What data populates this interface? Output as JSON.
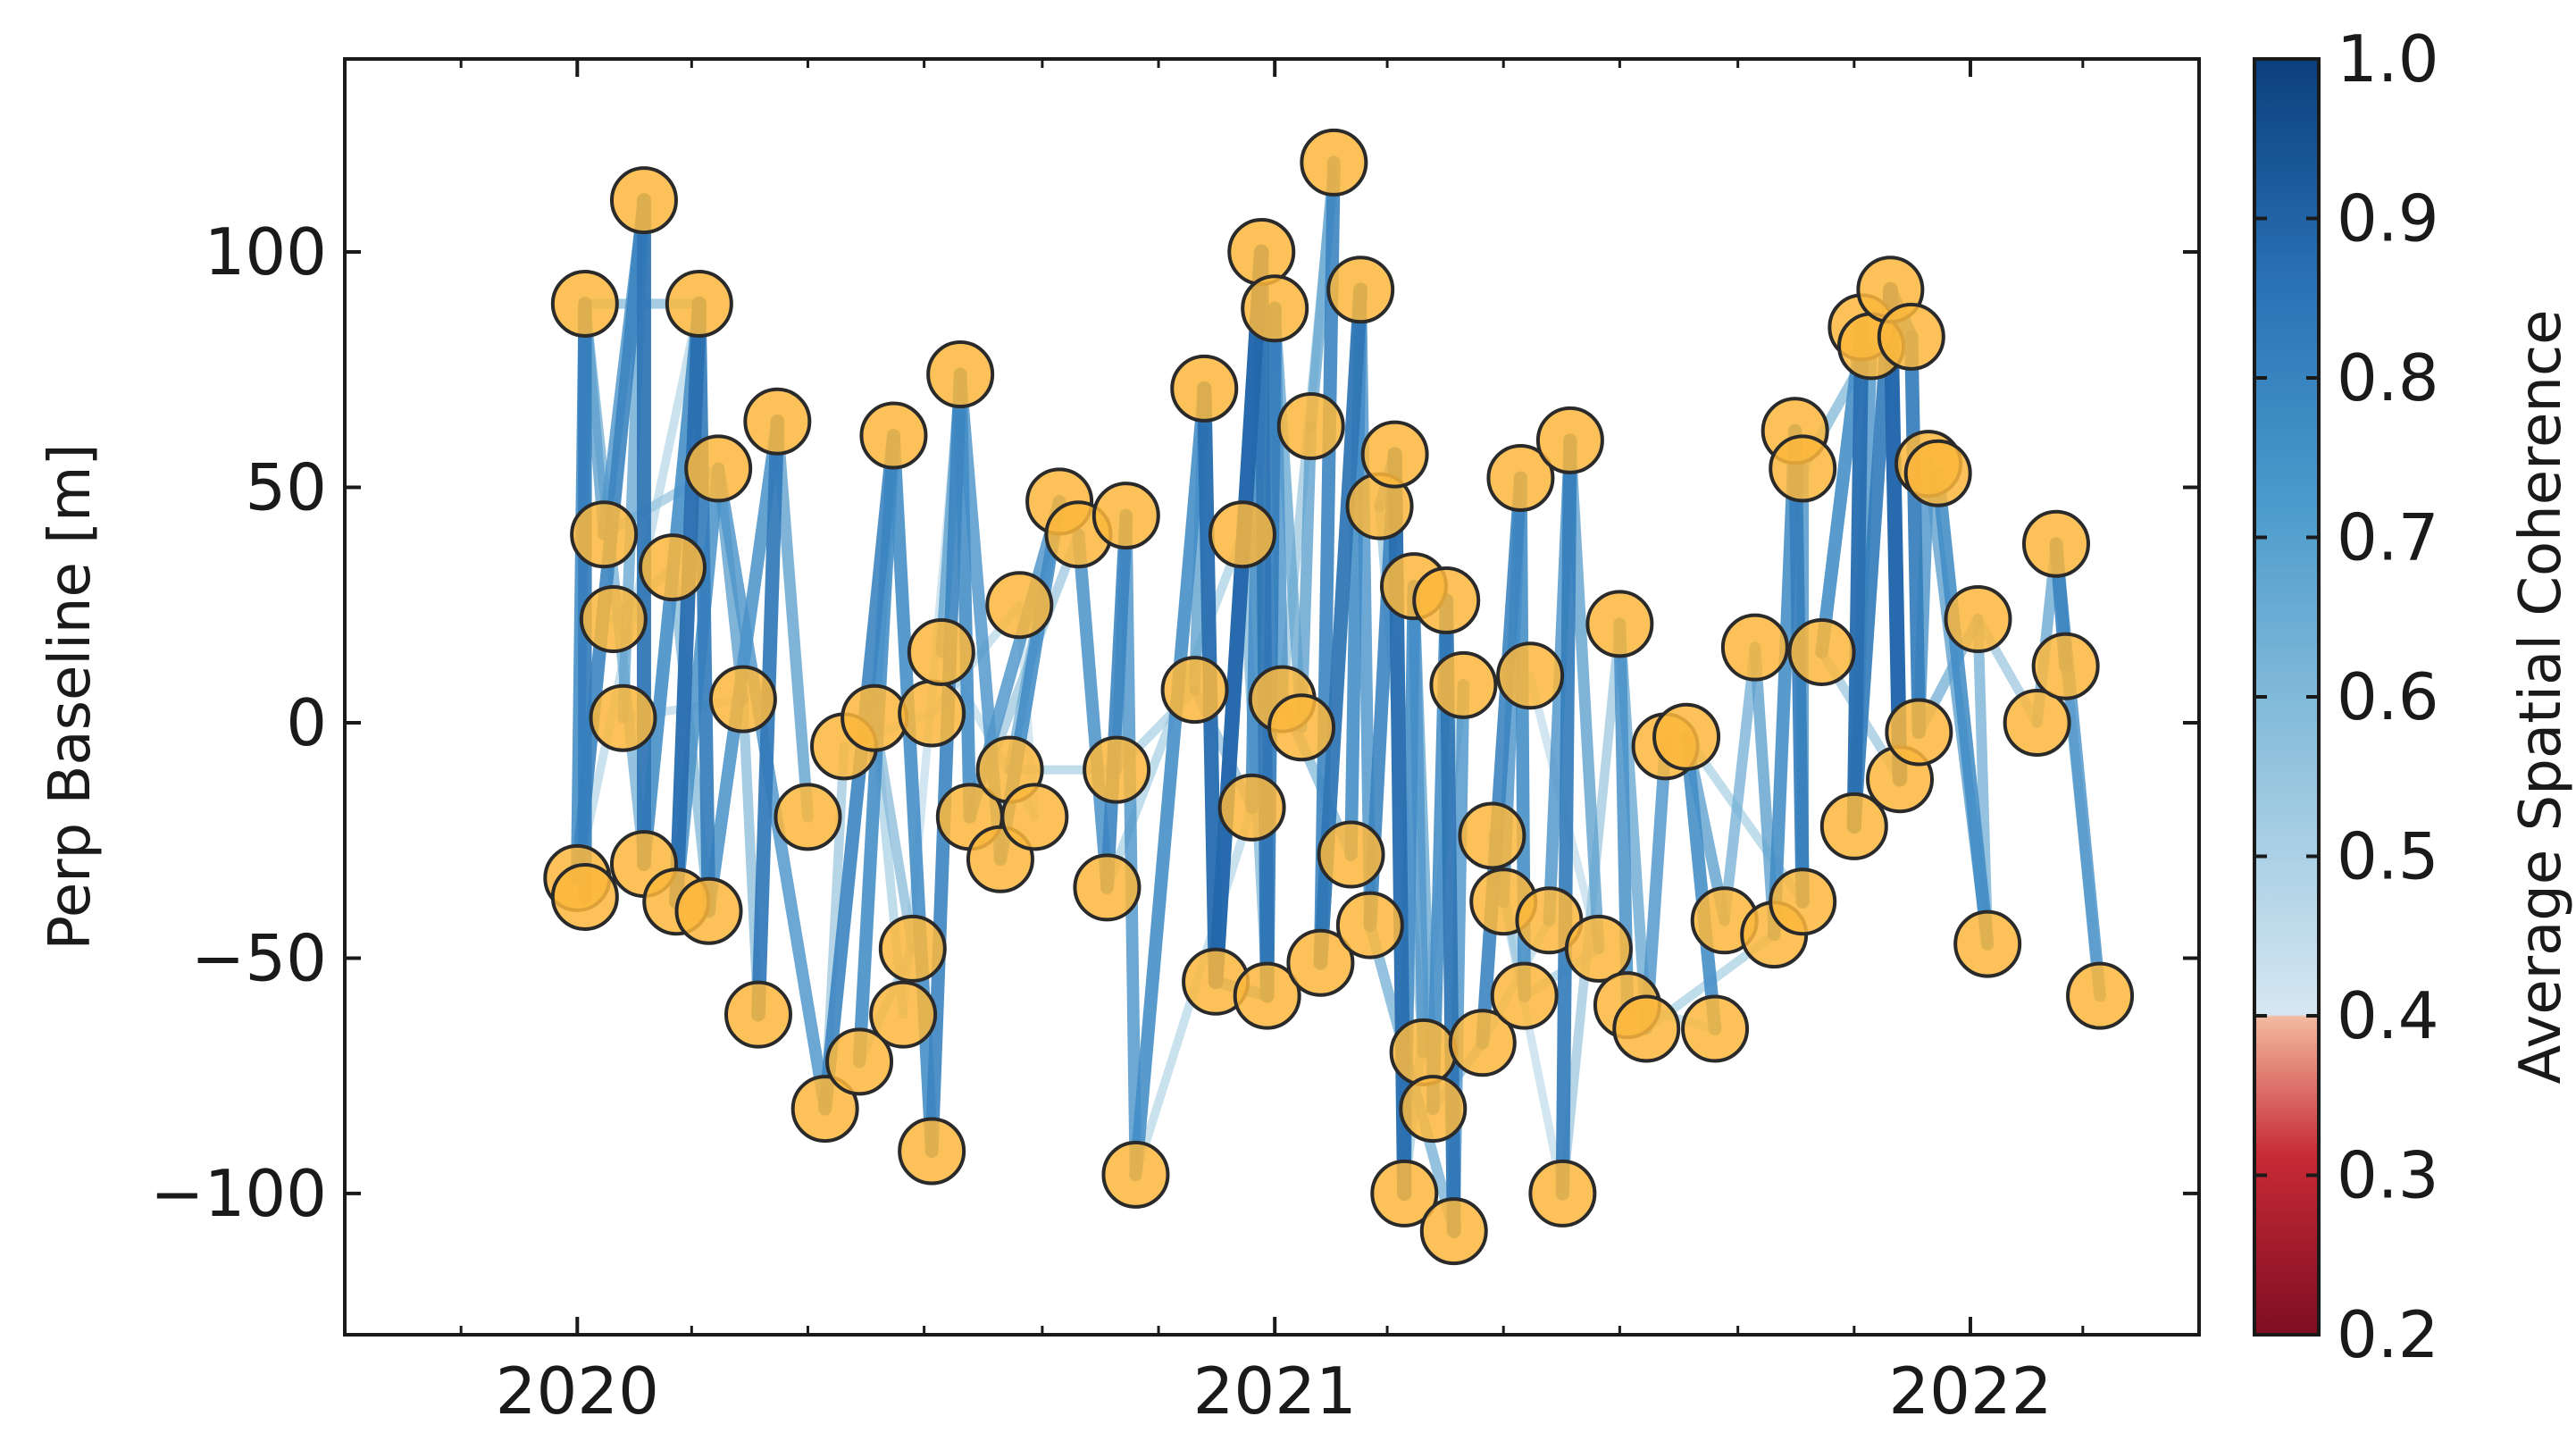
{
  "chart_data": {
    "type": "scatter",
    "title": "",
    "xlabel": "",
    "ylabel": "Perp Baseline [m]",
    "colorbar_label": "Average Spatial Coherence",
    "x_ticks": [
      "2020",
      "2021",
      "2022"
    ],
    "y_ticks": [
      100,
      50,
      0,
      -50,
      -100
    ],
    "y_tick_labels": [
      "100",
      "50",
      "0",
      "−50",
      "−100"
    ],
    "xlim": [
      "2019-09-01",
      "2022-05-01"
    ],
    "ylim": [
      -130,
      141
    ],
    "colorbar_ticks": [
      "1.0",
      "0.9",
      "0.8",
      "0.7",
      "0.6",
      "0.5",
      "0.4",
      "0.3",
      "0.2"
    ],
    "colorbar_range": [
      0.2,
      1.0
    ],
    "colorbar_threshold": 0.4,
    "colors": {
      "marker_fill": "#fbb73c",
      "marker_edge": "#2a2a2a",
      "colormap_low": [
        "#7e0d22",
        "#c72a35",
        "#e98a74",
        "#f2b9a0"
      ],
      "colormap_high": [
        "#cfe3f0",
        "#92c3de",
        "#4c9bcc",
        "#2a73b6",
        "#0b3f7e"
      ]
    },
    "grid": false,
    "legend": "none",
    "points": [
      {
        "date": "2020-01-01",
        "baseline": -33
      },
      {
        "date": "2020-01-05",
        "baseline": -37
      },
      {
        "date": "2020-01-05",
        "baseline": 89
      },
      {
        "date": "2020-01-15",
        "baseline": 40
      },
      {
        "date": "2020-01-20",
        "baseline": 22
      },
      {
        "date": "2020-01-25",
        "baseline": 1
      },
      {
        "date": "2020-02-05",
        "baseline": 111
      },
      {
        "date": "2020-02-05",
        "baseline": -30
      },
      {
        "date": "2020-02-20",
        "baseline": 33
      },
      {
        "date": "2020-02-22",
        "baseline": -38
      },
      {
        "date": "2020-03-05",
        "baseline": 89
      },
      {
        "date": "2020-03-10",
        "baseline": -40
      },
      {
        "date": "2020-03-15",
        "baseline": 54
      },
      {
        "date": "2020-03-28",
        "baseline": 5
      },
      {
        "date": "2020-04-05",
        "baseline": -62
      },
      {
        "date": "2020-04-15",
        "baseline": 64
      },
      {
        "date": "2020-05-01",
        "baseline": -20
      },
      {
        "date": "2020-05-10",
        "baseline": -82
      },
      {
        "date": "2020-05-20",
        "baseline": -5
      },
      {
        "date": "2020-05-28",
        "baseline": -72
      },
      {
        "date": "2020-06-05",
        "baseline": 1
      },
      {
        "date": "2020-06-15",
        "baseline": 61
      },
      {
        "date": "2020-06-20",
        "baseline": -62
      },
      {
        "date": "2020-06-25",
        "baseline": -48
      },
      {
        "date": "2020-07-05",
        "baseline": -91
      },
      {
        "date": "2020-07-05",
        "baseline": 2
      },
      {
        "date": "2020-07-10",
        "baseline": 15
      },
      {
        "date": "2020-07-20",
        "baseline": 74
      },
      {
        "date": "2020-07-25",
        "baseline": -20
      },
      {
        "date": "2020-08-10",
        "baseline": -29
      },
      {
        "date": "2020-08-15",
        "baseline": -10
      },
      {
        "date": "2020-08-20",
        "baseline": 25
      },
      {
        "date": "2020-08-28",
        "baseline": -20
      },
      {
        "date": "2020-09-10",
        "baseline": 47
      },
      {
        "date": "2020-09-20",
        "baseline": 40
      },
      {
        "date": "2020-10-05",
        "baseline": -35
      },
      {
        "date": "2020-10-10",
        "baseline": -10
      },
      {
        "date": "2020-10-15",
        "baseline": 44
      },
      {
        "date": "2020-10-20",
        "baseline": -96
      },
      {
        "date": "2020-11-20",
        "baseline": 7
      },
      {
        "date": "2020-11-25",
        "baseline": 71
      },
      {
        "date": "2020-12-01",
        "baseline": -55
      },
      {
        "date": "2020-12-15",
        "baseline": 40
      },
      {
        "date": "2020-12-20",
        "baseline": -18
      },
      {
        "date": "2020-12-25",
        "baseline": 100
      },
      {
        "date": "2020-12-28",
        "baseline": -58
      },
      {
        "date": "2021-01-01",
        "baseline": 88
      },
      {
        "date": "2021-01-05",
        "baseline": 5
      },
      {
        "date": "2021-01-15",
        "baseline": -1
      },
      {
        "date": "2021-01-20",
        "baseline": 63
      },
      {
        "date": "2021-01-25",
        "baseline": -51
      },
      {
        "date": "2021-02-01",
        "baseline": 119
      },
      {
        "date": "2021-02-10",
        "baseline": -28
      },
      {
        "date": "2021-02-15",
        "baseline": 92
      },
      {
        "date": "2021-02-20",
        "baseline": -43
      },
      {
        "date": "2021-02-25",
        "baseline": 46
      },
      {
        "date": "2021-03-05",
        "baseline": 57
      },
      {
        "date": "2021-03-10",
        "baseline": -100
      },
      {
        "date": "2021-03-15",
        "baseline": 29
      },
      {
        "date": "2021-03-20",
        "baseline": -70
      },
      {
        "date": "2021-03-25",
        "baseline": -82
      },
      {
        "date": "2021-04-01",
        "baseline": 26
      },
      {
        "date": "2021-04-05",
        "baseline": -108
      },
      {
        "date": "2021-04-10",
        "baseline": 8
      },
      {
        "date": "2021-04-20",
        "baseline": -68
      },
      {
        "date": "2021-04-25",
        "baseline": -24
      },
      {
        "date": "2021-05-01",
        "baseline": -38
      },
      {
        "date": "2021-05-10",
        "baseline": 52
      },
      {
        "date": "2021-05-12",
        "baseline": -58
      },
      {
        "date": "2021-05-15",
        "baseline": 10
      },
      {
        "date": "2021-05-25",
        "baseline": -42
      },
      {
        "date": "2021-06-01",
        "baseline": -100
      },
      {
        "date": "2021-06-05",
        "baseline": 60
      },
      {
        "date": "2021-06-20",
        "baseline": -48
      },
      {
        "date": "2021-07-01",
        "baseline": 21
      },
      {
        "date": "2021-07-05",
        "baseline": -60
      },
      {
        "date": "2021-07-15",
        "baseline": -65
      },
      {
        "date": "2021-07-25",
        "baseline": -5
      },
      {
        "date": "2021-08-05",
        "baseline": -3
      },
      {
        "date": "2021-08-20",
        "baseline": -65
      },
      {
        "date": "2021-08-25",
        "baseline": -42
      },
      {
        "date": "2021-09-10",
        "baseline": 16
      },
      {
        "date": "2021-09-20",
        "baseline": -45
      },
      {
        "date": "2021-10-01",
        "baseline": 62
      },
      {
        "date": "2021-10-05",
        "baseline": 54
      },
      {
        "date": "2021-10-05",
        "baseline": -38
      },
      {
        "date": "2021-10-15",
        "baseline": 15
      },
      {
        "date": "2021-11-01",
        "baseline": -22
      },
      {
        "date": "2021-11-05",
        "baseline": 84
      },
      {
        "date": "2021-11-10",
        "baseline": 80
      },
      {
        "date": "2021-11-20",
        "baseline": 92
      },
      {
        "date": "2021-11-25",
        "baseline": -12
      },
      {
        "date": "2021-12-01",
        "baseline": 82
      },
      {
        "date": "2021-12-05",
        "baseline": -2
      },
      {
        "date": "2021-12-10",
        "baseline": 55
      },
      {
        "date": "2021-12-15",
        "baseline": 53
      },
      {
        "date": "2022-01-05",
        "baseline": 22
      },
      {
        "date": "2022-01-10",
        "baseline": -47
      },
      {
        "date": "2022-02-05",
        "baseline": 0
      },
      {
        "date": "2022-02-15",
        "baseline": 38
      },
      {
        "date": "2022-02-20",
        "baseline": 12
      },
      {
        "date": "2022-03-10",
        "baseline": -58
      }
    ],
    "pairs": [
      [
        2,
        1,
        0.74
      ],
      [
        2,
        0,
        0.7
      ],
      [
        2,
        3,
        0.62
      ],
      [
        2,
        10,
        0.55
      ],
      [
        6,
        0,
        0.72
      ],
      [
        6,
        7,
        0.76
      ],
      [
        6,
        3,
        0.66
      ],
      [
        6,
        5,
        0.6
      ],
      [
        10,
        9,
        0.78
      ],
      [
        10,
        11,
        0.74
      ],
      [
        10,
        7,
        0.7
      ],
      [
        12,
        9,
        0.68
      ],
      [
        12,
        13,
        0.62
      ],
      [
        15,
        14,
        0.75
      ],
      [
        15,
        11,
        0.68
      ],
      [
        15,
        16,
        0.62
      ],
      [
        14,
        13,
        0.55
      ],
      [
        17,
        12,
        0.66
      ],
      [
        17,
        18,
        0.52
      ],
      [
        21,
        17,
        0.72
      ],
      [
        21,
        19,
        0.7
      ],
      [
        21,
        20,
        0.58
      ],
      [
        21,
        24,
        0.7
      ],
      [
        22,
        20,
        0.5
      ],
      [
        23,
        20,
        0.55
      ],
      [
        27,
        24,
        0.72
      ],
      [
        27,
        26,
        0.62
      ],
      [
        27,
        28,
        0.7
      ],
      [
        27,
        29,
        0.66
      ],
      [
        27,
        22,
        0.46
      ],
      [
        33,
        29,
        0.7
      ],
      [
        33,
        28,
        0.66
      ],
      [
        33,
        30,
        0.58
      ],
      [
        34,
        35,
        0.68
      ],
      [
        37,
        35,
        0.72
      ],
      [
        37,
        36,
        0.6
      ],
      [
        37,
        38,
        0.66
      ],
      [
        40,
        38,
        0.7
      ],
      [
        40,
        41,
        0.78
      ],
      [
        40,
        39,
        0.62
      ],
      [
        44,
        41,
        0.8
      ],
      [
        44,
        43,
        0.7
      ],
      [
        44,
        45,
        0.76
      ],
      [
        46,
        45,
        0.74
      ],
      [
        46,
        47,
        0.66
      ],
      [
        46,
        48,
        0.6
      ],
      [
        49,
        48,
        0.62
      ],
      [
        51,
        50,
        0.72
      ],
      [
        51,
        49,
        0.6
      ],
      [
        51,
        47,
        0.52
      ],
      [
        53,
        50,
        0.76
      ],
      [
        53,
        52,
        0.7
      ],
      [
        53,
        54,
        0.66
      ],
      [
        56,
        54,
        0.72
      ],
      [
        56,
        57,
        0.78
      ],
      [
        56,
        55,
        0.62
      ],
      [
        58,
        57,
        0.7
      ],
      [
        58,
        59,
        0.66
      ],
      [
        58,
        60,
        0.6
      ],
      [
        61,
        62,
        0.76
      ],
      [
        61,
        60,
        0.7
      ],
      [
        63,
        62,
        0.66
      ],
      [
        67,
        64,
        0.72
      ],
      [
        67,
        66,
        0.66
      ],
      [
        67,
        68,
        0.7
      ],
      [
        72,
        71,
        0.74
      ],
      [
        72,
        70,
        0.66
      ],
      [
        72,
        73,
        0.62
      ],
      [
        74,
        75,
        0.68
      ],
      [
        74,
        76,
        0.6
      ],
      [
        74,
        71,
        0.52
      ],
      [
        77,
        76,
        0.66
      ],
      [
        78,
        79,
        0.7
      ],
      [
        78,
        80,
        0.62
      ],
      [
        81,
        80,
        0.58
      ],
      [
        81,
        82,
        0.62
      ],
      [
        83,
        85,
        0.74
      ],
      [
        83,
        82,
        0.7
      ],
      [
        84,
        85,
        0.66
      ],
      [
        88,
        87,
        0.78
      ],
      [
        88,
        86,
        0.7
      ],
      [
        89,
        87,
        0.66
      ],
      [
        90,
        91,
        0.8
      ],
      [
        90,
        87,
        0.74
      ],
      [
        90,
        92,
        0.7
      ],
      [
        92,
        93,
        0.74
      ],
      [
        94,
        93,
        0.66
      ],
      [
        95,
        97,
        0.7
      ],
      [
        94,
        97,
        0.62
      ],
      [
        99,
        98,
        0.6
      ],
      [
        99,
        100,
        0.72
      ],
      [
        99,
        101,
        0.66
      ],
      [
        96,
        97,
        0.58
      ],
      [
        96,
        98,
        0.52
      ],
      [
        100,
        101,
        0.56
      ],
      [
        2,
        7,
        0.58
      ],
      [
        10,
        0,
        0.48
      ],
      [
        3,
        12,
        0.52
      ],
      [
        8,
        11,
        0.56
      ],
      [
        19,
        23,
        0.5
      ],
      [
        25,
        31,
        0.48
      ],
      [
        30,
        36,
        0.5
      ],
      [
        31,
        32,
        0.45
      ],
      [
        35,
        42,
        0.5
      ],
      [
        42,
        45,
        0.56
      ],
      [
        39,
        43,
        0.54
      ],
      [
        47,
        52,
        0.56
      ],
      [
        55,
        59,
        0.52
      ],
      [
        57,
        63,
        0.5
      ],
      [
        65,
        68,
        0.52
      ],
      [
        68,
        73,
        0.5
      ],
      [
        69,
        73,
        0.46
      ],
      [
        75,
        79,
        0.48
      ],
      [
        76,
        82,
        0.5
      ],
      [
        84,
        89,
        0.56
      ],
      [
        86,
        91,
        0.52
      ],
      [
        93,
        96,
        0.58
      ],
      [
        5,
        13,
        0.47
      ],
      [
        26,
        32,
        0.46
      ],
      [
        64,
        70,
        0.48
      ],
      [
        78,
        85,
        0.5
      ],
      [
        66,
        71,
        0.46
      ],
      [
        28,
        34,
        0.52
      ],
      [
        4,
        8,
        0.5
      ],
      [
        18,
        25,
        0.46
      ],
      [
        41,
        45,
        0.62
      ],
      [
        54,
        62,
        0.58
      ],
      [
        60,
        64,
        0.54
      ],
      [
        38,
        43,
        0.48
      ],
      [
        36,
        39,
        0.5
      ]
    ]
  }
}
